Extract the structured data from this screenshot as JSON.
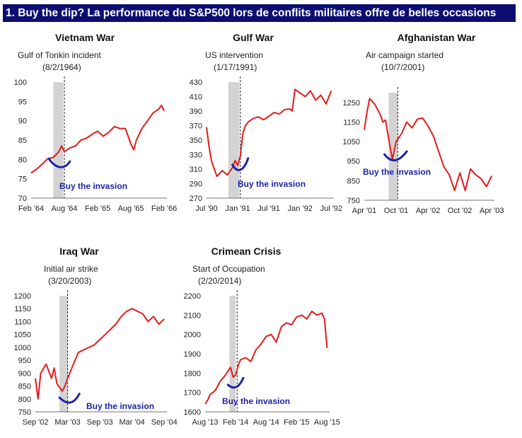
{
  "banner": {
    "title": "1. Buy the dip? La performance du S&P500 lors de conflits militaires offre de belles occasions"
  },
  "colors": {
    "line": "#e31b1b",
    "shade": "#d3d3d3",
    "annotation": "#1d24a8",
    "banner_bg": "#0b0e70",
    "banner_text": "#ffffff"
  },
  "chart_data": [
    {
      "type": "line",
      "title": "Vietnam War",
      "event_label": "Gulf of Tonkin incident",
      "event_date": "(8/2/1964)",
      "annotation": "Buy the invasion",
      "xlim": [
        0,
        24.5
      ],
      "ylim": [
        70,
        100
      ],
      "yticks": [
        70,
        75,
        80,
        85,
        90,
        95,
        100
      ],
      "xticks": [
        {
          "x": 0,
          "label": "Feb '64"
        },
        {
          "x": 6,
          "label": "Aug '64"
        },
        {
          "x": 12,
          "label": "Feb '65"
        },
        {
          "x": 18,
          "label": "Aug '65"
        },
        {
          "x": 24,
          "label": "Feb '66"
        }
      ],
      "event_x": 6,
      "shade": [
        4,
        5.8
      ],
      "dip_arc": [
        [
          3.2,
          80.2
        ],
        [
          4.5,
          77.5
        ],
        [
          6,
          77.3
        ],
        [
          7,
          79.5
        ]
      ],
      "series": [
        {
          "x": [
            0,
            1,
            2,
            3,
            4,
            5,
            5.5,
            6,
            7,
            8,
            9,
            10,
            11,
            12,
            13,
            14,
            15,
            16,
            17,
            18,
            18.5,
            19,
            20,
            21,
            22,
            23,
            23.5,
            24
          ],
          "values": [
            76.5,
            77.5,
            78.8,
            80.2,
            80.5,
            82,
            83.5,
            82,
            83,
            83.5,
            85,
            85.5,
            86.5,
            87.3,
            86,
            87,
            88.5,
            88,
            88,
            84,
            82.5,
            85,
            88,
            90,
            92,
            93,
            94,
            92.5
          ]
        }
      ]
    },
    {
      "type": "line",
      "title": "Gulf War",
      "event_label": "US intervention",
      "event_date": "(1/17/1991)",
      "annotation": "Buy the invasion",
      "xlim": [
        0,
        24.5
      ],
      "ylim": [
        270,
        430
      ],
      "yticks": [
        270,
        290,
        310,
        330,
        350,
        370,
        390,
        410,
        430
      ],
      "xticks": [
        {
          "x": 0,
          "label": "Jul '90"
        },
        {
          "x": 6,
          "label": "Jan '91"
        },
        {
          "x": 12,
          "label": "Jul '91"
        },
        {
          "x": 18,
          "label": "Jan '92"
        },
        {
          "x": 24,
          "label": "Jul '92"
        }
      ],
      "event_x": 6.5,
      "shade": [
        4.2,
        6.3
      ],
      "dip_arc": [
        [
          5,
          316
        ],
        [
          6,
          303
        ],
        [
          7.2,
          308
        ],
        [
          8,
          325
        ]
      ],
      "series": [
        {
          "x": [
            0,
            0.5,
            1,
            2,
            3,
            4,
            5,
            5.5,
            6,
            6.5,
            7,
            7.5,
            8,
            9,
            10,
            11,
            12,
            13,
            14,
            15,
            16,
            16.5,
            17,
            18,
            19,
            20,
            21,
            22,
            23,
            24
          ],
          "values": [
            368,
            340,
            320,
            300,
            308,
            302,
            312,
            322,
            315,
            328,
            360,
            370,
            375,
            380,
            382,
            378,
            383,
            388,
            386,
            392,
            393,
            390,
            420,
            415,
            410,
            418,
            405,
            412,
            400,
            418
          ]
        }
      ]
    },
    {
      "type": "line",
      "title": "Afghanistan War",
      "event_label": "Air campaign started",
      "event_date": "(10/7/2001)",
      "annotation": "Buy the invasion",
      "xlim": [
        0,
        24.5
      ],
      "ylim": [
        750,
        1300
      ],
      "yticks": [
        750,
        850,
        950,
        1050,
        1150,
        1250
      ],
      "xticks": [
        {
          "x": 0,
          "label": "Apr '01"
        },
        {
          "x": 6,
          "label": "Oct '01"
        },
        {
          "x": 12,
          "label": "Apr '02"
        },
        {
          "x": 18,
          "label": "Oct '02"
        },
        {
          "x": 24,
          "label": "Apr '03"
        }
      ],
      "event_x": 6.3,
      "shade": [
        4.6,
        6.3
      ],
      "dip_arc": [
        [
          3.8,
          985
        ],
        [
          5.2,
          935
        ],
        [
          6.6,
          950
        ],
        [
          8,
          1000
        ]
      ],
      "series": [
        {
          "x": [
            0,
            0.5,
            1,
            2,
            3,
            3.5,
            4,
            5,
            5.3,
            6,
            7,
            8,
            9,
            10,
            11,
            12,
            13,
            14,
            15,
            16,
            17,
            18,
            19,
            20,
            21,
            22,
            23,
            24
          ],
          "values": [
            1110,
            1200,
            1270,
            1240,
            1190,
            1150,
            1160,
            1000,
            960,
            1050,
            1090,
            1150,
            1120,
            1165,
            1170,
            1130,
            1080,
            1000,
            920,
            880,
            800,
            890,
            800,
            910,
            880,
            860,
            820,
            875
          ]
        }
      ]
    },
    {
      "type": "line",
      "title": "Iraq War",
      "event_label": "Initial air strike",
      "event_date": "(3/20/2003)",
      "annotation": "Buy the invasion",
      "xlim": [
        0,
        24.5
      ],
      "ylim": [
        750,
        1200
      ],
      "yticks": [
        750,
        800,
        850,
        900,
        950,
        1000,
        1050,
        1100,
        1150,
        1200
      ],
      "xticks": [
        {
          "x": 0,
          "label": "Sep '02"
        },
        {
          "x": 6,
          "label": "Mar '03"
        },
        {
          "x": 12,
          "label": "Sep '03"
        },
        {
          "x": 18,
          "label": "Mar '04"
        },
        {
          "x": 24,
          "label": "Sep '04"
        }
      ],
      "event_x": 6,
      "shade": [
        4.5,
        6
      ],
      "dip_arc": [
        [
          4.5,
          805
        ],
        [
          6,
          775
        ],
        [
          7.2,
          780
        ],
        [
          8.2,
          820
        ]
      ],
      "series": [
        {
          "x": [
            0,
            0.5,
            1,
            2,
            3,
            3.5,
            4,
            5,
            5.5,
            6,
            7,
            8,
            9,
            10,
            11,
            12,
            13,
            14,
            15,
            16,
            17,
            18,
            19,
            20,
            21,
            22,
            23,
            24
          ],
          "values": [
            880,
            800,
            900,
            935,
            880,
            920,
            860,
            830,
            850,
            880,
            930,
            980,
            990,
            1000,
            1010,
            1030,
            1050,
            1070,
            1090,
            1120,
            1140,
            1150,
            1140,
            1130,
            1100,
            1120,
            1090,
            1110
          ]
        }
      ]
    },
    {
      "type": "line",
      "title": "Crimean Crisis",
      "event_label": "Start of Occupation",
      "event_date": "(2/20/2014)",
      "annotation": "Buy the invasion",
      "xlim": [
        0,
        24.5
      ],
      "ylim": [
        1600,
        2200
      ],
      "yticks": [
        1600,
        1700,
        1800,
        1900,
        2000,
        2100,
        2200
      ],
      "xticks": [
        {
          "x": 0,
          "label": "Aug '13"
        },
        {
          "x": 6,
          "label": "Feb '14"
        },
        {
          "x": 12,
          "label": "Aug '14"
        },
        {
          "x": 18,
          "label": "Feb '15"
        },
        {
          "x": 24,
          "label": "Aug '15"
        }
      ],
      "event_x": 6.3,
      "shade": [
        4.8,
        6
      ],
      "dip_arc": [
        [
          4.5,
          1740
        ],
        [
          5.5,
          1715
        ],
        [
          6.6,
          1720
        ],
        [
          7.5,
          1775
        ]
      ],
      "series": [
        {
          "x": [
            0,
            0.5,
            1,
            2,
            3,
            4,
            5,
            5.5,
            6,
            6.5,
            7,
            8,
            9,
            10,
            11,
            12,
            13,
            14,
            15,
            16,
            17,
            18,
            19,
            20,
            21,
            22,
            23,
            23.5,
            24
          ],
          "values": [
            1640,
            1660,
            1690,
            1710,
            1760,
            1790,
            1830,
            1780,
            1790,
            1840,
            1870,
            1880,
            1860,
            1920,
            1950,
            1990,
            2000,
            1960,
            2040,
            2060,
            2050,
            2090,
            2100,
            2080,
            2120,
            2100,
            2110,
            2080,
            1930
          ]
        }
      ]
    }
  ]
}
